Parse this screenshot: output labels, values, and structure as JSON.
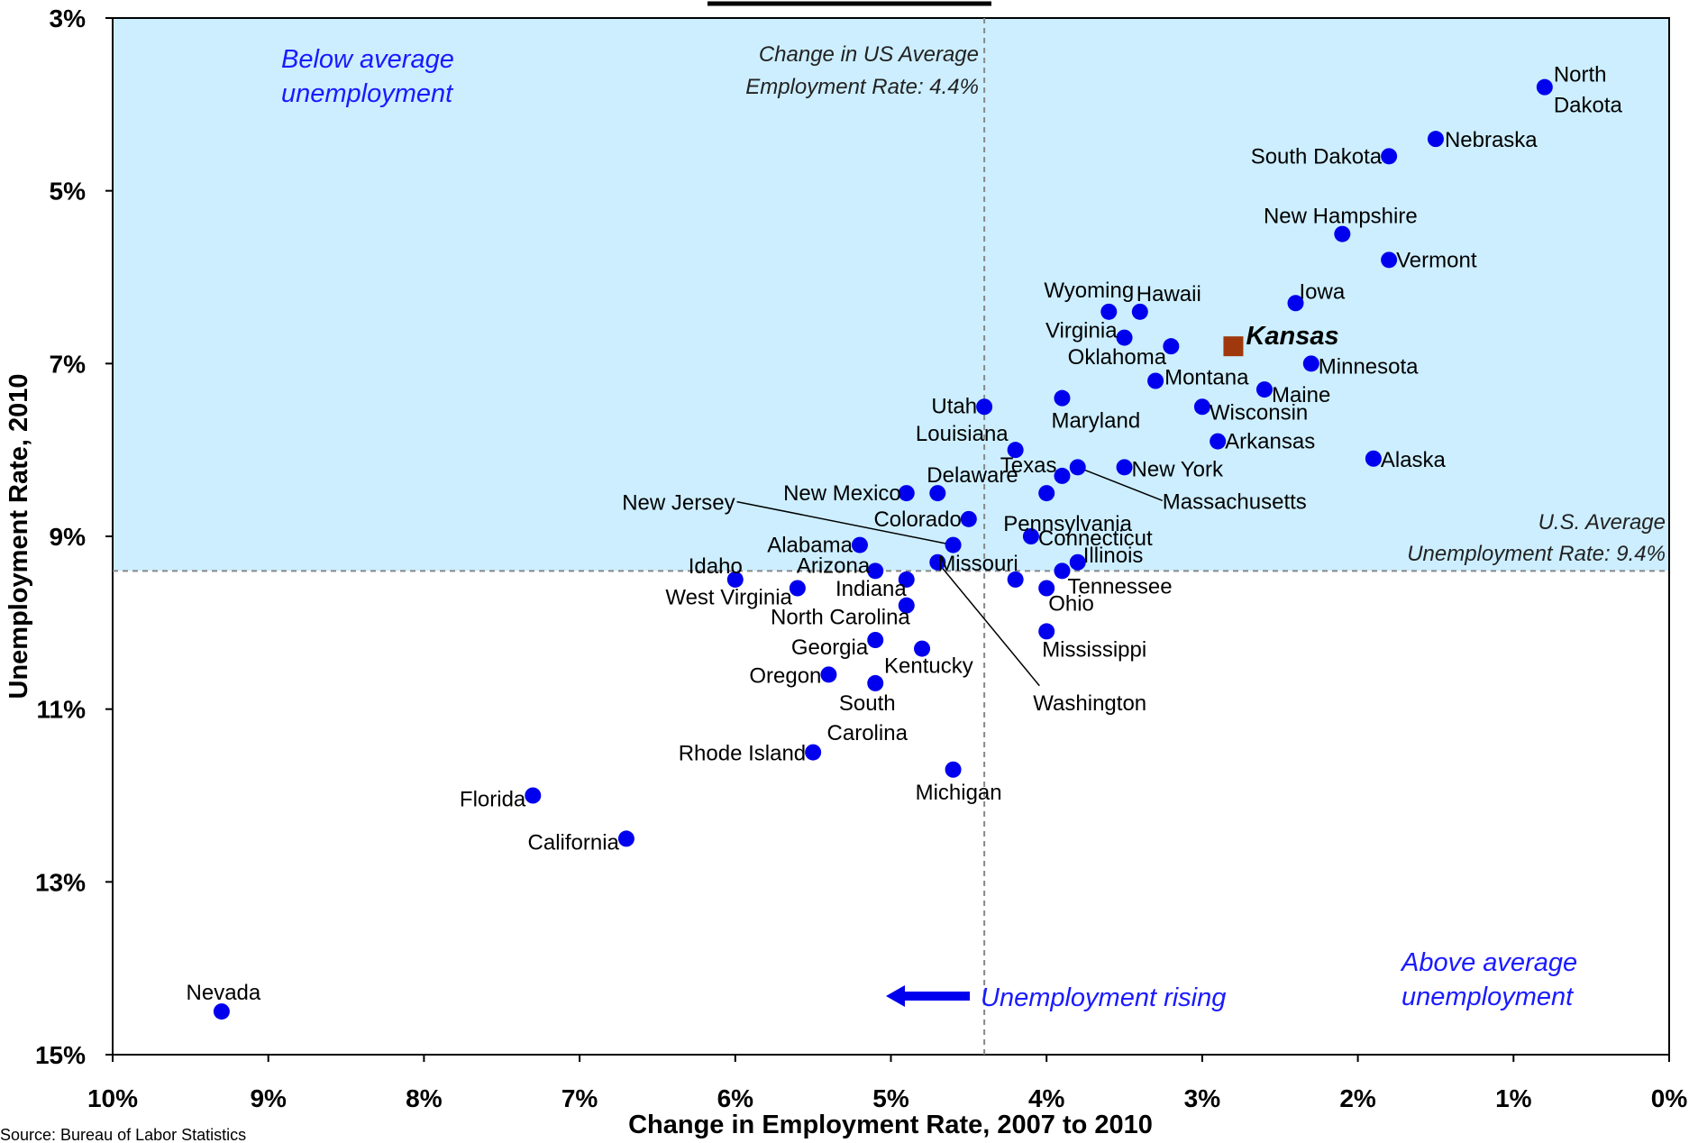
{
  "colors": {
    "point": "#0000ee",
    "highlight": "#a0380d",
    "shade": "#cceeff",
    "region_text": "#1a1aff",
    "refline": "#888888"
  },
  "source": "Source: Bureau of Labor Statistics",
  "notes": {
    "us_employment": [
      "Change in US Average",
      "Employment Rate: 4.4%"
    ],
    "us_unemployment": [
      "U.S. Average",
      "Unemployment Rate: 9.4%"
    ],
    "below": [
      "Below average",
      "unemployment"
    ],
    "above": [
      "Above average",
      "unemployment"
    ],
    "rising": "Unemployment rising"
  },
  "chart_data": {
    "type": "scatter",
    "title": "",
    "xlabel": "Change in Employment Rate, 2007 to 2010",
    "ylabel": "Unemployment Rate, 2010",
    "xlim": [
      10,
      0
    ],
    "ylim": [
      15,
      3
    ],
    "x_ticks": [
      "10%",
      "9%",
      "8%",
      "7%",
      "6%",
      "5%",
      "4%",
      "3%",
      "2%",
      "1%",
      "0%"
    ],
    "x_tick_values": [
      10,
      9,
      8,
      7,
      6,
      5,
      4,
      3,
      2,
      1,
      0
    ],
    "y_ticks": [
      "3%",
      "5%",
      "7%",
      "9%",
      "11%",
      "13%",
      "15%"
    ],
    "y_tick_values": [
      3,
      5,
      7,
      9,
      11,
      13,
      15
    ],
    "reference_lines": {
      "us_avg_employment_change": 4.4,
      "us_avg_unemployment": 9.4
    },
    "points": [
      {
        "name": "North Dakota",
        "x": 0.8,
        "y": 3.8
      },
      {
        "name": "Nebraska",
        "x": 1.5,
        "y": 4.4
      },
      {
        "name": "South Dakota",
        "x": 1.8,
        "y": 4.6
      },
      {
        "name": "New Hampshire",
        "x": 2.1,
        "y": 5.5
      },
      {
        "name": "Vermont",
        "x": 1.8,
        "y": 5.8
      },
      {
        "name": "Iowa",
        "x": 2.4,
        "y": 6.3
      },
      {
        "name": "Wyoming",
        "x": 3.6,
        "y": 6.4
      },
      {
        "name": "Hawaii",
        "x": 3.4,
        "y": 6.4
      },
      {
        "name": "Virginia",
        "x": 3.5,
        "y": 6.7
      },
      {
        "name": "Oklahoma",
        "x": 3.2,
        "y": 6.8
      },
      {
        "name": "Kansas",
        "x": 2.8,
        "y": 6.8
      },
      {
        "name": "Minnesota",
        "x": 2.3,
        "y": 7.0
      },
      {
        "name": "Montana",
        "x": 3.3,
        "y": 7.2
      },
      {
        "name": "Maine",
        "x": 2.6,
        "y": 7.3
      },
      {
        "name": "Maryland",
        "x": 3.9,
        "y": 7.4
      },
      {
        "name": "Utah",
        "x": 4.4,
        "y": 7.5
      },
      {
        "name": "Wisconsin",
        "x": 3.0,
        "y": 7.5
      },
      {
        "name": "Arkansas",
        "x": 2.9,
        "y": 7.9
      },
      {
        "name": "Louisiana",
        "x": 4.2,
        "y": 8.0
      },
      {
        "name": "Alaska",
        "x": 1.9,
        "y": 8.1
      },
      {
        "name": "Massachusetts",
        "x": 3.8,
        "y": 8.2
      },
      {
        "name": "New York",
        "x": 3.5,
        "y": 8.2
      },
      {
        "name": "Texas",
        "x": 3.9,
        "y": 8.3
      },
      {
        "name": "Delaware",
        "x": 4.7,
        "y": 8.5
      },
      {
        "name": "New Mexico",
        "x": 4.9,
        "y": 8.5
      },
      {
        "name": "Pennsylvania",
        "x": 4.0,
        "y": 8.5
      },
      {
        "name": "Colorado",
        "x": 4.5,
        "y": 8.8
      },
      {
        "name": "Connecticut",
        "x": 4.1,
        "y": 9.0
      },
      {
        "name": "New Jersey",
        "x": 4.6,
        "y": 9.1
      },
      {
        "name": "Alabama",
        "x": 5.2,
        "y": 9.1
      },
      {
        "name": "Illinois",
        "x": 3.8,
        "y": 9.3
      },
      {
        "name": "Washington",
        "x": 4.7,
        "y": 9.3
      },
      {
        "name": "Arizona",
        "x": 5.1,
        "y": 9.4
      },
      {
        "name": "Tennessee",
        "x": 3.9,
        "y": 9.4
      },
      {
        "name": "Idaho",
        "x": 6.0,
        "y": 9.5
      },
      {
        "name": "Indiana",
        "x": 4.9,
        "y": 9.5
      },
      {
        "name": "Missouri",
        "x": 4.2,
        "y": 9.5
      },
      {
        "name": "West Virginia",
        "x": 5.6,
        "y": 9.6
      },
      {
        "name": "Ohio",
        "x": 4.0,
        "y": 9.6
      },
      {
        "name": "North Carolina",
        "x": 4.9,
        "y": 9.8
      },
      {
        "name": "Mississippi",
        "x": 4.0,
        "y": 10.1
      },
      {
        "name": "Georgia",
        "x": 5.1,
        "y": 10.2
      },
      {
        "name": "Kentucky",
        "x": 4.8,
        "y": 10.3
      },
      {
        "name": "Oregon",
        "x": 5.4,
        "y": 10.6
      },
      {
        "name": "South Carolina",
        "x": 5.1,
        "y": 10.7
      },
      {
        "name": "Rhode Island",
        "x": 5.5,
        "y": 11.5
      },
      {
        "name": "Michigan",
        "x": 4.6,
        "y": 11.7
      },
      {
        "name": "Florida",
        "x": 7.3,
        "y": 12.0
      },
      {
        "name": "California",
        "x": 6.7,
        "y": 12.5
      },
      {
        "name": "Nevada",
        "x": 9.3,
        "y": 14.5
      }
    ]
  }
}
